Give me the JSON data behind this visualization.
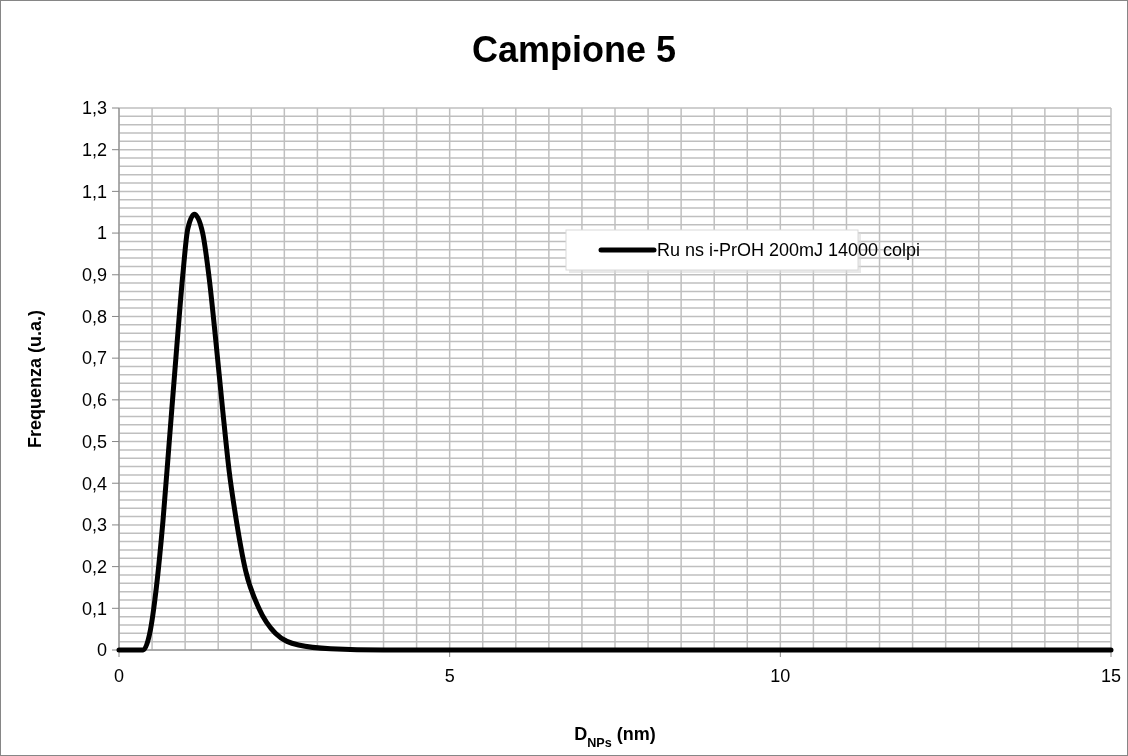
{
  "chart_data": {
    "type": "line",
    "title": "Campione 5",
    "xlabel": "D$_{NPs}$ (nm)",
    "ylabel": "Frequenza (u.a.)",
    "xlim": [
      0,
      15
    ],
    "ylim": [
      0,
      1.3
    ],
    "xticks": [
      0,
      {
        "value": 0.5,
        "label": null
      },
      {
        "value": 1,
        "label": null
      },
      {
        "value": 1.5,
        "label": null
      },
      {
        "value": 2,
        "label": null
      },
      {
        "value": 2.5,
        "label": null
      },
      {
        "value": 3,
        "label": null
      },
      {
        "value": 3.5,
        "label": null
      },
      {
        "value": 4,
        "label": null
      },
      {
        "value": 4.5,
        "label": null
      },
      5,
      {
        "value": 5.5,
        "label": null
      },
      {
        "value": 6,
        "label": null
      },
      {
        "value": 6.5,
        "label": null
      },
      {
        "value": 7,
        "label": null
      },
      {
        "value": 7.5,
        "label": null
      },
      {
        "value": 8,
        "label": null
      },
      {
        "value": 8.5,
        "label": null
      },
      {
        "value": 9,
        "label": null
      },
      {
        "value": 9.5,
        "label": null
      },
      10,
      {
        "value": 10.5,
        "label": null
      },
      {
        "value": 11,
        "label": null
      },
      {
        "value": 11.5,
        "label": null
      },
      {
        "value": 12,
        "label": null
      },
      {
        "value": 12.5,
        "label": null
      },
      {
        "value": 13,
        "label": null
      },
      {
        "value": 13.5,
        "label": null
      },
      {
        "value": 14,
        "label": null
      },
      {
        "value": 14.5,
        "label": null
      },
      15
    ],
    "yticks": [
      0,
      {
        "value": 0.1,
        "label": "0,1"
      },
      {
        "value": 0.2,
        "label": "0,2"
      },
      {
        "value": 0.3,
        "label": "0,3"
      },
      {
        "value": 0.4,
        "label": "0,4"
      },
      {
        "value": 0.5,
        "label": "0,5"
      },
      {
        "value": 0.6,
        "label": "0,6"
      },
      {
        "value": 0.7,
        "label": "0,7"
      },
      {
        "value": 0.8,
        "label": "0,8"
      },
      {
        "value": 0.9,
        "label": "0,9"
      },
      1,
      {
        "value": 1.1,
        "label": "1,1"
      },
      {
        "value": 1.2,
        "label": "1,2"
      },
      {
        "value": 1.3,
        "label": "1,3"
      }
    ],
    "grid": true,
    "legend": "top right",
    "marker": "none",
    "line_style": "solid",
    "series": [
      {
        "name": "Ru ns i-PrOH 200mJ 14000 colpi",
        "color": "#000000",
        "x": [
          0,
          0.365,
          0.465,
          0.565,
          0.665,
          0.765,
          0.865,
          0.965,
          1.04,
          1.14,
          1.265,
          1.365,
          1.465,
          1.565,
          1.665,
          1.765,
          1.915,
          2.115,
          2.365,
          2.715,
          3.2,
          4,
          15
        ],
        "values": [
          0,
          0,
          0.04,
          0.15,
          0.31,
          0.51,
          0.71,
          0.9,
          1.01,
          1.045,
          1,
          0.89,
          0.74,
          0.58,
          0.43,
          0.32,
          0.19,
          0.1,
          0.04,
          0.012,
          0.003,
          0,
          0
        ]
      }
    ]
  }
}
